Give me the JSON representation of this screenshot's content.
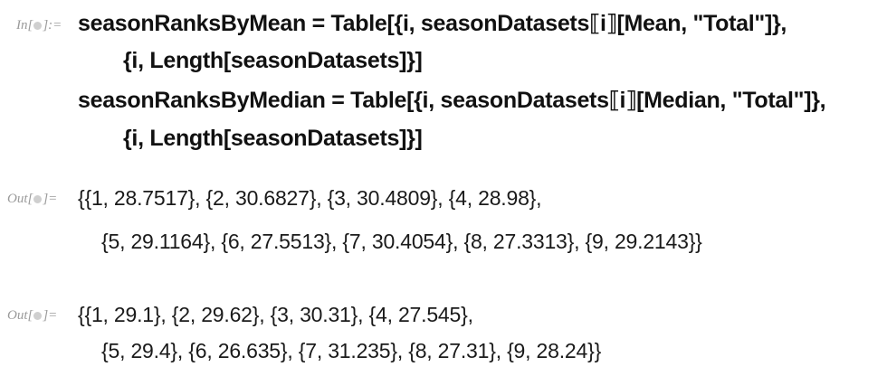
{
  "input_cell": {
    "label_prefix": "In[",
    "label_suffix": "]:=",
    "lines": [
      "seasonRanksByMean = Table[{i, seasonDatasets⟦i⟧[Mean, \"Total\"]},",
      "{i, Length[seasonDatasets]}]",
      "seasonRanksByMedian = Table[{i, seasonDatasets⟦i⟧[Median, \"Total\"]},",
      "{i, Length[seasonDatasets]}]"
    ]
  },
  "output_cells": [
    {
      "label_prefix": "Out[",
      "label_suffix": "]=",
      "lines": [
        "{{1, 28.7517}, {2, 30.6827}, {3, 30.4809}, {4, 28.98},",
        "{5, 29.1164}, {6, 27.5513}, {7, 30.4054}, {8, 27.3313}, {9, 29.2143}}"
      ]
    },
    {
      "label_prefix": "Out[",
      "label_suffix": "]=",
      "lines": [
        "{{1, 29.1}, {2, 29.62}, {3, 30.31}, {4, 27.545},",
        "{5, 29.4}, {6, 26.635}, {7, 31.235}, {8, 27.31}, {9, 28.24}}"
      ]
    }
  ]
}
